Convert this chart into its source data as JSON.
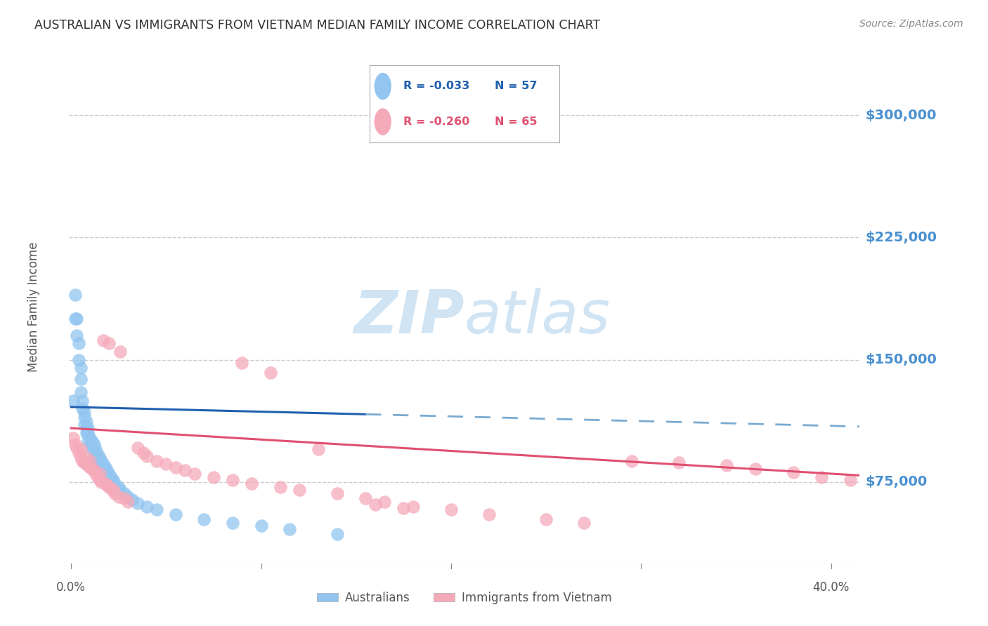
{
  "title": "AUSTRALIAN VS IMMIGRANTS FROM VIETNAM MEDIAN FAMILY INCOME CORRELATION CHART",
  "source": "Source: ZipAtlas.com",
  "ylabel": "Median Family Income",
  "yticks": [
    75000,
    150000,
    225000,
    300000
  ],
  "ytick_labels": [
    "$75,000",
    "$150,000",
    "$225,000",
    "$300,000"
  ],
  "ymin": 25000,
  "ymax": 340000,
  "xmin": -0.001,
  "xmax": 0.415,
  "legend_R_blue": "R = -0.033",
  "legend_N_blue": "N = 57",
  "legend_R_pink": "R = -0.260",
  "legend_N_pink": "N = 65",
  "legend_label_blue": "Australians",
  "legend_label_pink": "Immigrants from Vietnam",
  "blue_color": "#92C5F0",
  "pink_color": "#F5AABA",
  "trendline_blue_solid_color": "#2060B0",
  "trendline_blue_dash_color": "#7AAAD0",
  "trendline_pink_color": "#E05070",
  "background_color": "#FFFFFF",
  "grid_color": "#CCCCCC",
  "title_color": "#333333",
  "axis_label_color": "#555555",
  "ytick_color": "#4A90D0",
  "xtick_color": "#555555",
  "watermark_color": "#D0E4F4",
  "blue_trend_x0": 0.0,
  "blue_trend_x_solid_end": 0.155,
  "blue_trend_x1": 0.415,
  "blue_trend_y0": 121000,
  "blue_trend_y1": 109000,
  "pink_trend_x0": 0.0,
  "pink_trend_x1": 0.415,
  "pink_trend_y0": 108000,
  "pink_trend_y1": 79000,
  "blue_scatter_x": [
    0.001,
    0.002,
    0.002,
    0.003,
    0.003,
    0.004,
    0.004,
    0.005,
    0.005,
    0.005,
    0.006,
    0.006,
    0.007,
    0.007,
    0.007,
    0.008,
    0.008,
    0.008,
    0.009,
    0.009,
    0.009,
    0.01,
    0.01,
    0.011,
    0.011,
    0.012,
    0.012,
    0.013,
    0.013,
    0.014,
    0.014,
    0.015,
    0.015,
    0.016,
    0.016,
    0.017,
    0.017,
    0.018,
    0.019,
    0.02,
    0.021,
    0.022,
    0.023,
    0.025,
    0.026,
    0.028,
    0.03,
    0.032,
    0.035,
    0.04,
    0.045,
    0.055,
    0.07,
    0.085,
    0.1,
    0.115,
    0.14
  ],
  "blue_scatter_y": [
    125000,
    190000,
    175000,
    175000,
    165000,
    160000,
    150000,
    145000,
    138000,
    130000,
    125000,
    120000,
    118000,
    115000,
    110000,
    112000,
    108000,
    105000,
    108000,
    105000,
    100000,
    102000,
    98000,
    100000,
    95000,
    98000,
    93000,
    95000,
    90000,
    92000,
    88000,
    90000,
    86000,
    88000,
    84000,
    86000,
    82000,
    84000,
    82000,
    80000,
    78000,
    76000,
    74000,
    72000,
    70000,
    68000,
    66000,
    64000,
    62000,
    60000,
    58000,
    55000,
    52000,
    50000,
    48000,
    46000,
    43000
  ],
  "pink_scatter_x": [
    0.001,
    0.002,
    0.003,
    0.004,
    0.005,
    0.005,
    0.006,
    0.007,
    0.008,
    0.008,
    0.009,
    0.01,
    0.01,
    0.011,
    0.012,
    0.013,
    0.014,
    0.015,
    0.015,
    0.016,
    0.017,
    0.018,
    0.019,
    0.02,
    0.02,
    0.021,
    0.022,
    0.023,
    0.025,
    0.026,
    0.028,
    0.03,
    0.035,
    0.038,
    0.04,
    0.045,
    0.05,
    0.055,
    0.06,
    0.065,
    0.075,
    0.085,
    0.095,
    0.11,
    0.12,
    0.14,
    0.155,
    0.165,
    0.18,
    0.2,
    0.22,
    0.25,
    0.27,
    0.295,
    0.32,
    0.345,
    0.36,
    0.38,
    0.395,
    0.41,
    0.16,
    0.175,
    0.13,
    0.09,
    0.105
  ],
  "pink_scatter_y": [
    102000,
    98000,
    96000,
    93000,
    90000,
    95000,
    88000,
    87000,
    86000,
    90000,
    85000,
    84000,
    88000,
    83000,
    82000,
    80000,
    78000,
    76000,
    80000,
    75000,
    162000,
    74000,
    73000,
    72000,
    160000,
    71000,
    70000,
    68000,
    66000,
    155000,
    65000,
    63000,
    96000,
    93000,
    91000,
    88000,
    86000,
    84000,
    82000,
    80000,
    78000,
    76000,
    74000,
    72000,
    70000,
    68000,
    65000,
    63000,
    60000,
    58000,
    55000,
    52000,
    50000,
    88000,
    87000,
    85000,
    83000,
    81000,
    78000,
    76000,
    61000,
    59000,
    95000,
    148000,
    142000
  ]
}
